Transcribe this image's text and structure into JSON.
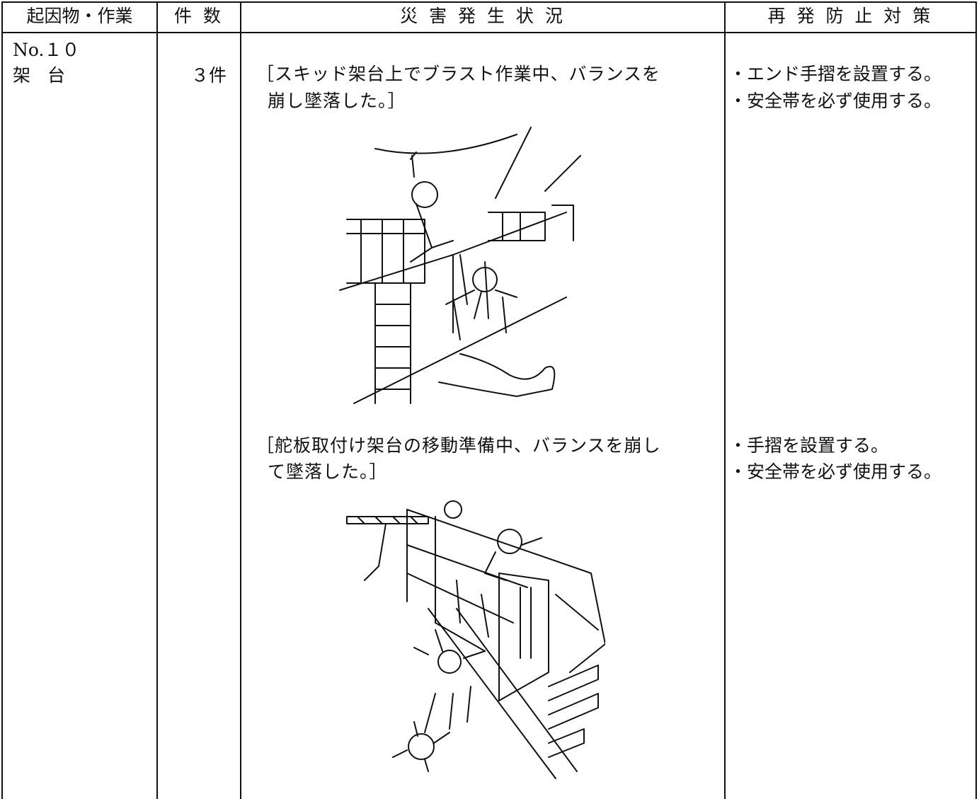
{
  "table": {
    "header": [
      "起因物・作業",
      "件 数",
      "災 害 発 生 状 況",
      "再 発 防 止 対 策"
    ],
    "row": {
      "item_no": "No.１０",
      "item": "架 台",
      "count": "３件",
      "cases": [
        {
          "description": [
            "［スキッド架台上でブラスト作業中、バランスを",
            "崩し墜落した。］"
          ],
          "measures": [
            "・エンド手摺を設置する。",
            "・安全帯を必ず使用する。"
          ]
        },
        {
          "description": [
            "［舵板取付け架台の移動準備中、バランスを崩し",
            "て墜落した。］"
          ],
          "measures": [
            "・手摺を設置する。",
            "・安全帯を必ず使用する。"
          ]
        }
      ]
    }
  }
}
